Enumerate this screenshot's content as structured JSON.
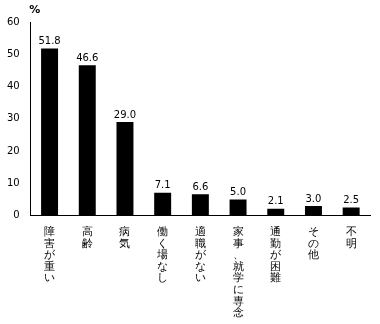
{
  "chart_data": {
    "type": "bar",
    "y_label": "%",
    "categories": [
      "障害が重い",
      "高齢",
      "病気",
      "働く場なし",
      "適職がない",
      "家事、就学に専念",
      "通勤が困難",
      "その他",
      "不明"
    ],
    "values": [
      51.8,
      46.6,
      29.0,
      7.1,
      6.6,
      5.0,
      2.1,
      3.0,
      2.5
    ],
    "value_labels": [
      "51.8",
      "46.6",
      "29.0",
      "7.1",
      "6.6",
      "5.0",
      "2.1",
      "3.0",
      "2.5"
    ],
    "data_labels": true,
    "color": "#000000",
    "ylim": [
      0,
      60
    ],
    "yticks": [
      0,
      10,
      20,
      30,
      40,
      50,
      60
    ],
    "grid": false
  }
}
